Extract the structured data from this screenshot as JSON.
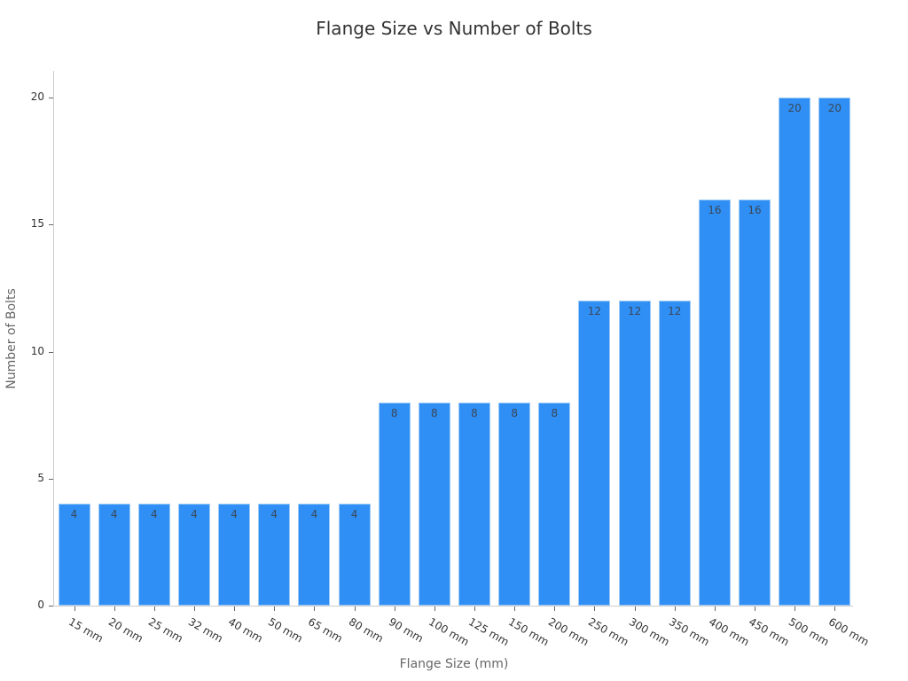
{
  "chart_data": {
    "type": "bar",
    "title": "Flange Size vs Number of Bolts",
    "xlabel": "Flange Size (mm)",
    "ylabel": "Number of Bolts",
    "categories": [
      "15 mm",
      "20 mm",
      "25 mm",
      "32 mm",
      "40 mm",
      "50 mm",
      "65 mm",
      "80 mm",
      "90 mm",
      "100 mm",
      "125 mm",
      "150 mm",
      "200 mm",
      "250 mm",
      "300 mm",
      "350 mm",
      "400 mm",
      "450 mm",
      "500 mm",
      "600 mm"
    ],
    "values": [
      4,
      4,
      4,
      4,
      4,
      4,
      4,
      4,
      8,
      8,
      8,
      8,
      8,
      12,
      12,
      12,
      16,
      16,
      20,
      20
    ],
    "ylim": [
      0,
      21
    ],
    "yticks": [
      0,
      5,
      10,
      15,
      20
    ],
    "grid": false,
    "legend": null,
    "bar_color": "#2f8ff5",
    "data_labels": true
  }
}
